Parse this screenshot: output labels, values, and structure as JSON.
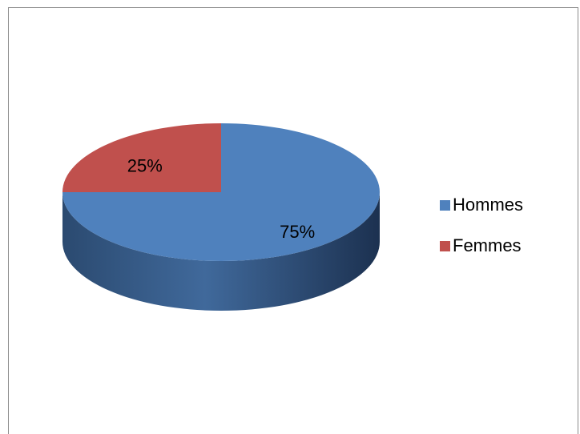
{
  "chart_data": {
    "type": "pie",
    "categories": [
      "Hommes",
      "Femmes"
    ],
    "values": [
      75,
      25
    ],
    "value_labels": [
      "75%",
      "25%"
    ],
    "colors": [
      "#4f81bd",
      "#c0504d"
    ],
    "legend": "right"
  }
}
